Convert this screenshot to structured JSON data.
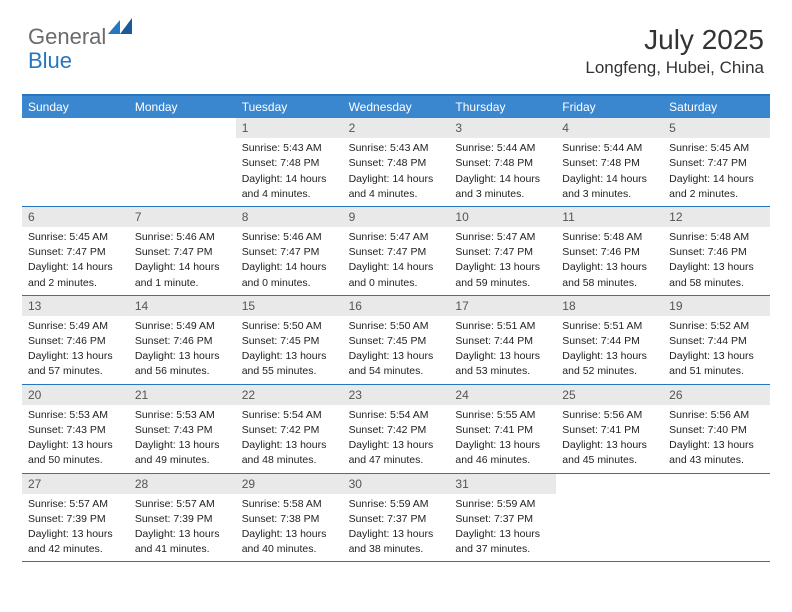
{
  "logo": {
    "part1": "General",
    "part2": "Blue"
  },
  "title": "July 2025",
  "location": "Longfeng, Hubei, China",
  "colors": {
    "header_bar": "#3a87cf",
    "border": "#2676c0",
    "daynum_bg": "#e9e9e9",
    "logo_gray": "#6b6b6b",
    "logo_blue": "#2676c0"
  },
  "day_names": [
    "Sunday",
    "Monday",
    "Tuesday",
    "Wednesday",
    "Thursday",
    "Friday",
    "Saturday"
  ],
  "weeks": [
    [
      null,
      null,
      {
        "n": "1",
        "sr": "Sunrise: 5:43 AM",
        "ss": "Sunset: 7:48 PM",
        "dl1": "Daylight: 14 hours",
        "dl2": "and 4 minutes."
      },
      {
        "n": "2",
        "sr": "Sunrise: 5:43 AM",
        "ss": "Sunset: 7:48 PM",
        "dl1": "Daylight: 14 hours",
        "dl2": "and 4 minutes."
      },
      {
        "n": "3",
        "sr": "Sunrise: 5:44 AM",
        "ss": "Sunset: 7:48 PM",
        "dl1": "Daylight: 14 hours",
        "dl2": "and 3 minutes."
      },
      {
        "n": "4",
        "sr": "Sunrise: 5:44 AM",
        "ss": "Sunset: 7:48 PM",
        "dl1": "Daylight: 14 hours",
        "dl2": "and 3 minutes."
      },
      {
        "n": "5",
        "sr": "Sunrise: 5:45 AM",
        "ss": "Sunset: 7:47 PM",
        "dl1": "Daylight: 14 hours",
        "dl2": "and 2 minutes."
      }
    ],
    [
      {
        "n": "6",
        "sr": "Sunrise: 5:45 AM",
        "ss": "Sunset: 7:47 PM",
        "dl1": "Daylight: 14 hours",
        "dl2": "and 2 minutes."
      },
      {
        "n": "7",
        "sr": "Sunrise: 5:46 AM",
        "ss": "Sunset: 7:47 PM",
        "dl1": "Daylight: 14 hours",
        "dl2": "and 1 minute."
      },
      {
        "n": "8",
        "sr": "Sunrise: 5:46 AM",
        "ss": "Sunset: 7:47 PM",
        "dl1": "Daylight: 14 hours",
        "dl2": "and 0 minutes."
      },
      {
        "n": "9",
        "sr": "Sunrise: 5:47 AM",
        "ss": "Sunset: 7:47 PM",
        "dl1": "Daylight: 14 hours",
        "dl2": "and 0 minutes."
      },
      {
        "n": "10",
        "sr": "Sunrise: 5:47 AM",
        "ss": "Sunset: 7:47 PM",
        "dl1": "Daylight: 13 hours",
        "dl2": "and 59 minutes."
      },
      {
        "n": "11",
        "sr": "Sunrise: 5:48 AM",
        "ss": "Sunset: 7:46 PM",
        "dl1": "Daylight: 13 hours",
        "dl2": "and 58 minutes."
      },
      {
        "n": "12",
        "sr": "Sunrise: 5:48 AM",
        "ss": "Sunset: 7:46 PM",
        "dl1": "Daylight: 13 hours",
        "dl2": "and 58 minutes."
      }
    ],
    [
      {
        "n": "13",
        "sr": "Sunrise: 5:49 AM",
        "ss": "Sunset: 7:46 PM",
        "dl1": "Daylight: 13 hours",
        "dl2": "and 57 minutes."
      },
      {
        "n": "14",
        "sr": "Sunrise: 5:49 AM",
        "ss": "Sunset: 7:46 PM",
        "dl1": "Daylight: 13 hours",
        "dl2": "and 56 minutes."
      },
      {
        "n": "15",
        "sr": "Sunrise: 5:50 AM",
        "ss": "Sunset: 7:45 PM",
        "dl1": "Daylight: 13 hours",
        "dl2": "and 55 minutes."
      },
      {
        "n": "16",
        "sr": "Sunrise: 5:50 AM",
        "ss": "Sunset: 7:45 PM",
        "dl1": "Daylight: 13 hours",
        "dl2": "and 54 minutes."
      },
      {
        "n": "17",
        "sr": "Sunrise: 5:51 AM",
        "ss": "Sunset: 7:44 PM",
        "dl1": "Daylight: 13 hours",
        "dl2": "and 53 minutes."
      },
      {
        "n": "18",
        "sr": "Sunrise: 5:51 AM",
        "ss": "Sunset: 7:44 PM",
        "dl1": "Daylight: 13 hours",
        "dl2": "and 52 minutes."
      },
      {
        "n": "19",
        "sr": "Sunrise: 5:52 AM",
        "ss": "Sunset: 7:44 PM",
        "dl1": "Daylight: 13 hours",
        "dl2": "and 51 minutes."
      }
    ],
    [
      {
        "n": "20",
        "sr": "Sunrise: 5:53 AM",
        "ss": "Sunset: 7:43 PM",
        "dl1": "Daylight: 13 hours",
        "dl2": "and 50 minutes."
      },
      {
        "n": "21",
        "sr": "Sunrise: 5:53 AM",
        "ss": "Sunset: 7:43 PM",
        "dl1": "Daylight: 13 hours",
        "dl2": "and 49 minutes."
      },
      {
        "n": "22",
        "sr": "Sunrise: 5:54 AM",
        "ss": "Sunset: 7:42 PM",
        "dl1": "Daylight: 13 hours",
        "dl2": "and 48 minutes."
      },
      {
        "n": "23",
        "sr": "Sunrise: 5:54 AM",
        "ss": "Sunset: 7:42 PM",
        "dl1": "Daylight: 13 hours",
        "dl2": "and 47 minutes."
      },
      {
        "n": "24",
        "sr": "Sunrise: 5:55 AM",
        "ss": "Sunset: 7:41 PM",
        "dl1": "Daylight: 13 hours",
        "dl2": "and 46 minutes."
      },
      {
        "n": "25",
        "sr": "Sunrise: 5:56 AM",
        "ss": "Sunset: 7:41 PM",
        "dl1": "Daylight: 13 hours",
        "dl2": "and 45 minutes."
      },
      {
        "n": "26",
        "sr": "Sunrise: 5:56 AM",
        "ss": "Sunset: 7:40 PM",
        "dl1": "Daylight: 13 hours",
        "dl2": "and 43 minutes."
      }
    ],
    [
      {
        "n": "27",
        "sr": "Sunrise: 5:57 AM",
        "ss": "Sunset: 7:39 PM",
        "dl1": "Daylight: 13 hours",
        "dl2": "and 42 minutes."
      },
      {
        "n": "28",
        "sr": "Sunrise: 5:57 AM",
        "ss": "Sunset: 7:39 PM",
        "dl1": "Daylight: 13 hours",
        "dl2": "and 41 minutes."
      },
      {
        "n": "29",
        "sr": "Sunrise: 5:58 AM",
        "ss": "Sunset: 7:38 PM",
        "dl1": "Daylight: 13 hours",
        "dl2": "and 40 minutes."
      },
      {
        "n": "30",
        "sr": "Sunrise: 5:59 AM",
        "ss": "Sunset: 7:37 PM",
        "dl1": "Daylight: 13 hours",
        "dl2": "and 38 minutes."
      },
      {
        "n": "31",
        "sr": "Sunrise: 5:59 AM",
        "ss": "Sunset: 7:37 PM",
        "dl1": "Daylight: 13 hours",
        "dl2": "and 37 minutes."
      },
      null,
      null
    ]
  ]
}
